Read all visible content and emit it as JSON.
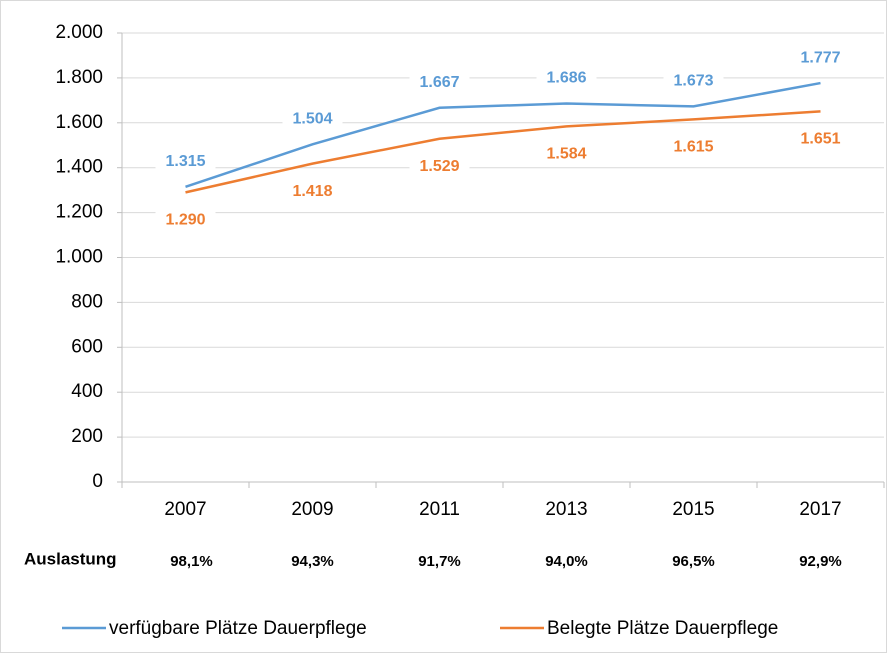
{
  "chart_data": {
    "type": "line",
    "categories": [
      "2007",
      "2009",
      "2011",
      "2013",
      "2015",
      "2017"
    ],
    "series": [
      {
        "name": "verfügbare Plätze Dauerpflege",
        "color": "#5b9bd5",
        "values": [
          1315,
          1504,
          1667,
          1686,
          1673,
          1777
        ],
        "value_labels": [
          "1.315",
          "1.504",
          "1.667",
          "1.686",
          "1.673",
          "1.777"
        ]
      },
      {
        "name": "Belegte Plätze Dauerpflege",
        "color": "#ed7d31",
        "values": [
          1290,
          1418,
          1529,
          1584,
          1615,
          1651
        ],
        "value_labels": [
          "1.290",
          "1.418",
          "1.529",
          "1.584",
          "1.615",
          "1.651"
        ]
      }
    ],
    "ylim": [
      0,
      2000
    ],
    "yticks": [
      0,
      200,
      400,
      600,
      800,
      {
        "value": 1000,
        "label": "1.000"
      },
      {
        "value": 1200,
        "label": "1.200"
      },
      {
        "value": 1400,
        "label": "1.400"
      },
      {
        "value": 1600,
        "label": "1.600"
      },
      {
        "value": 1800,
        "label": "1.800"
      },
      {
        "value": 2000,
        "label": "2.000"
      }
    ],
    "grid": true,
    "legend": "bottom",
    "annotation_row": {
      "label": "Auslastung",
      "items": [
        "98,1%",
        "94,3%",
        "91,7%",
        "94,0%",
        "96,5%",
        "92,9%"
      ]
    }
  }
}
